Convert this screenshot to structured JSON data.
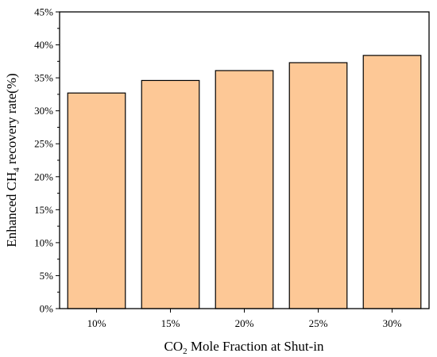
{
  "chart_data": {
    "type": "bar",
    "categories": [
      "10%",
      "15%",
      "20%",
      "25%",
      "30%"
    ],
    "values": [
      32.7,
      34.6,
      36.1,
      37.3,
      38.4
    ],
    "ylim": [
      0,
      45
    ],
    "yticks": [
      0,
      5,
      10,
      15,
      20,
      25,
      30,
      35,
      40,
      45
    ],
    "ytick_labels": [
      "0%",
      "5%",
      "10%",
      "15%",
      "20%",
      "25%",
      "30%",
      "35%",
      "40%",
      "45%"
    ],
    "xlabel": {
      "pre": "CO",
      "sub": "2",
      "post": " Mole Fraction at Shut-in"
    },
    "ylabel": {
      "pre": "Enhanced CH",
      "sub": "4",
      "post": " recovery rate(%)"
    },
    "grid": false,
    "bar_color": "#fdc896",
    "edge_color": "#000000"
  }
}
